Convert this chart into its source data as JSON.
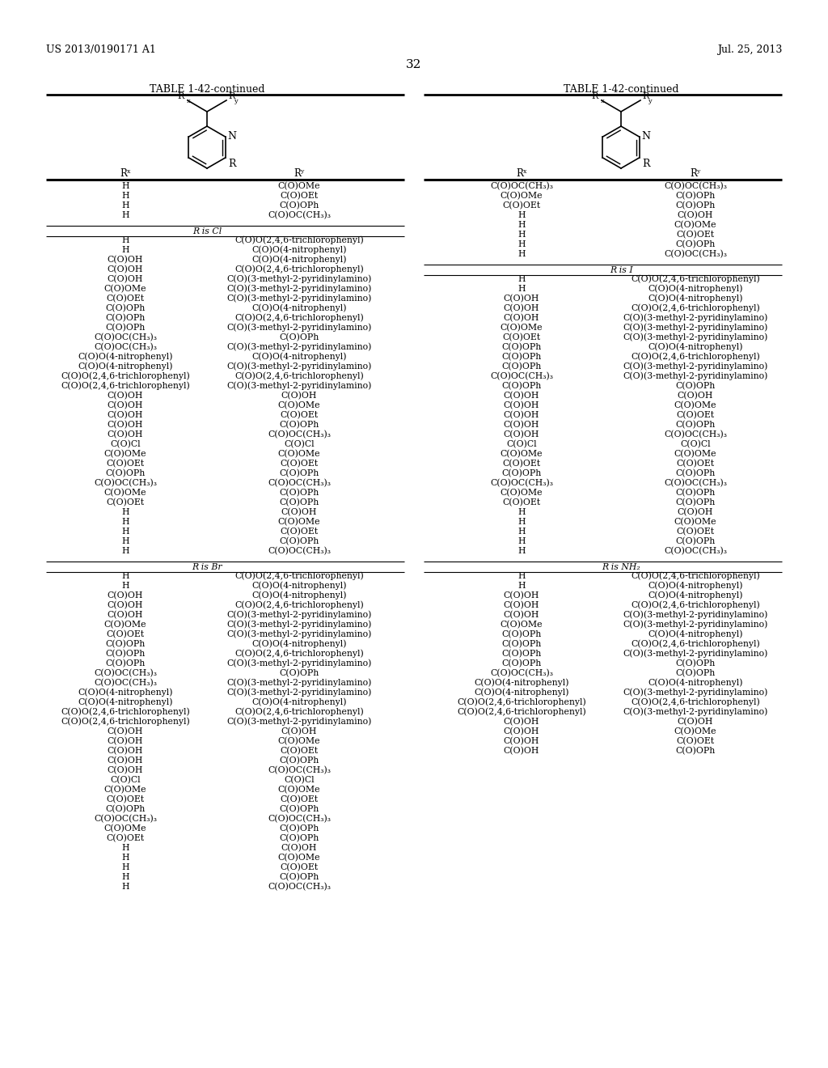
{
  "background_color": "#ffffff",
  "page_header_left": "US 2013/0190171 A1",
  "page_header_right": "Jul. 25, 2013",
  "page_number": "32",
  "table_title": "TABLE 1-42-continued",
  "left_table": {
    "r_is_none_rows": [
      [
        "H",
        "C(O)OMe"
      ],
      [
        "H",
        "C(O)OEt"
      ],
      [
        "H",
        "C(O)OPh"
      ],
      [
        "H",
        "C(O)OC(CH₃)₃"
      ]
    ],
    "r_is_cl_rows": [
      [
        "H",
        "C(O)O(2,4,6-trichlorophenyl)"
      ],
      [
        "H",
        "C(O)O(4-nitrophenyl)"
      ],
      [
        "C(O)OH",
        "C(O)O(4-nitrophenyl)"
      ],
      [
        "C(O)OH",
        "C(O)O(2,4,6-trichlorophenyl)"
      ],
      [
        "C(O)OH",
        "C(O)(3-methyl-2-pyridinylamino)"
      ],
      [
        "C(O)OMe",
        "C(O)(3-methyl-2-pyridinylamino)"
      ],
      [
        "C(O)OEt",
        "C(O)(3-methyl-2-pyridinylamino)"
      ],
      [
        "C(O)OPh",
        "C(O)O(4-nitrophenyl)"
      ],
      [
        "C(O)OPh",
        "C(O)O(2,4,6-trichlorophenyl)"
      ],
      [
        "C(O)OPh",
        "C(O)(3-methyl-2-pyridinylamino)"
      ],
      [
        "C(O)OC(CH₃)₃",
        "C(O)OPh"
      ],
      [
        "C(O)OC(CH₃)₃",
        "C(O)(3-methyl-2-pyridinylamino)"
      ],
      [
        "C(O)O(4-nitrophenyl)",
        "C(O)O(4-nitrophenyl)"
      ],
      [
        "C(O)O(4-nitrophenyl)",
        "C(O)(3-methyl-2-pyridinylamino)"
      ],
      [
        "C(O)O(2,4,6-trichlorophenyl)",
        "C(O)O(2,4,6-trichlorophenyl)"
      ],
      [
        "C(O)O(2,4,6-trichlorophenyl)",
        "C(O)(3-methyl-2-pyridinylamino)"
      ],
      [
        "C(O)OH",
        "C(O)OH"
      ],
      [
        "C(O)OH",
        "C(O)OMe"
      ],
      [
        "C(O)OH",
        "C(O)OEt"
      ],
      [
        "C(O)OH",
        "C(O)OPh"
      ],
      [
        "C(O)OH",
        "C(O)OC(CH₃)₃"
      ],
      [
        "C(O)Cl",
        "C(O)Cl"
      ],
      [
        "C(O)OMe",
        "C(O)OMe"
      ],
      [
        "C(O)OEt",
        "C(O)OEt"
      ],
      [
        "C(O)OPh",
        "C(O)OPh"
      ],
      [
        "C(O)OC(CH₃)₃",
        "C(O)OC(CH₃)₃"
      ],
      [
        "C(O)OMe",
        "C(O)OPh"
      ],
      [
        "C(O)OEt",
        "C(O)OPh"
      ],
      [
        "H",
        "C(O)OH"
      ],
      [
        "H",
        "C(O)OMe"
      ],
      [
        "H",
        "C(O)OEt"
      ],
      [
        "H",
        "C(O)OPh"
      ],
      [
        "H",
        "C(O)OC(CH₃)₃"
      ]
    ],
    "r_is_br_rows": [
      [
        "H",
        "C(O)O(2,4,6-trichlorophenyl)"
      ],
      [
        "H",
        "C(O)O(4-nitrophenyl)"
      ],
      [
        "C(O)OH",
        "C(O)O(4-nitrophenyl)"
      ],
      [
        "C(O)OH",
        "C(O)O(2,4,6-trichlorophenyl)"
      ],
      [
        "C(O)OH",
        "C(O)(3-methyl-2-pyridinylamino)"
      ],
      [
        "C(O)OMe",
        "C(O)(3-methyl-2-pyridinylamino)"
      ],
      [
        "C(O)OEt",
        "C(O)(3-methyl-2-pyridinylamino)"
      ],
      [
        "C(O)OPh",
        "C(O)O(4-nitrophenyl)"
      ],
      [
        "C(O)OPh",
        "C(O)O(2,4,6-trichlorophenyl)"
      ],
      [
        "C(O)OPh",
        "C(O)(3-methyl-2-pyridinylamino)"
      ],
      [
        "C(O)OC(CH₃)₃",
        "C(O)OPh"
      ],
      [
        "C(O)OC(CH₃)₃",
        "C(O)(3-methyl-2-pyridinylamino)"
      ],
      [
        "C(O)O(4-nitrophenyl)",
        "C(O)(3-methyl-2-pyridinylamino)"
      ],
      [
        "C(O)O(4-nitrophenyl)",
        "C(O)O(4-nitrophenyl)"
      ],
      [
        "C(O)O(2,4,6-trichlorophenyl)",
        "C(O)O(2,4,6-trichlorophenyl)"
      ],
      [
        "C(O)O(2,4,6-trichlorophenyl)",
        "C(O)(3-methyl-2-pyridinylamino)"
      ],
      [
        "C(O)OH",
        "C(O)OH"
      ],
      [
        "C(O)OH",
        "C(O)OMe"
      ],
      [
        "C(O)OH",
        "C(O)OEt"
      ],
      [
        "C(O)OH",
        "C(O)OPh"
      ],
      [
        "C(O)OH",
        "C(O)OC(CH₃)₃"
      ],
      [
        "C(O)Cl",
        "C(O)Cl"
      ],
      [
        "C(O)OMe",
        "C(O)OMe"
      ],
      [
        "C(O)OEt",
        "C(O)OEt"
      ],
      [
        "C(O)OPh",
        "C(O)OPh"
      ],
      [
        "C(O)OC(CH₃)₃",
        "C(O)OC(CH₃)₃"
      ],
      [
        "C(O)OMe",
        "C(O)OPh"
      ],
      [
        "C(O)OEt",
        "C(O)OPh"
      ],
      [
        "H",
        "C(O)OH"
      ],
      [
        "H",
        "C(O)OMe"
      ],
      [
        "H",
        "C(O)OEt"
      ],
      [
        "H",
        "C(O)OPh"
      ],
      [
        "H",
        "C(O)OC(CH₃)₃"
      ]
    ]
  },
  "right_table": {
    "r_is_none_rows": [
      [
        "C(O)OC(CH₃)₃",
        "C(O)OC(CH₃)₃"
      ],
      [
        "C(O)OMe",
        "C(O)OPh"
      ],
      [
        "C(O)OEt",
        "C(O)OPh"
      ],
      [
        "H",
        "C(O)OH"
      ],
      [
        "H",
        "C(O)OMe"
      ],
      [
        "H",
        "C(O)OEt"
      ],
      [
        "H",
        "C(O)OPh"
      ],
      [
        "H",
        "C(O)OC(CH₃)₃"
      ]
    ],
    "r_is_i_rows": [
      [
        "H",
        "C(O)O(2,4,6-trichlorophenyl)"
      ],
      [
        "H",
        "C(O)O(4-nitrophenyl)"
      ],
      [
        "C(O)OH",
        "C(O)O(4-nitrophenyl)"
      ],
      [
        "C(O)OH",
        "C(O)O(2,4,6-trichlorophenyl)"
      ],
      [
        "C(O)OH",
        "C(O)(3-methyl-2-pyridinylamino)"
      ],
      [
        "C(O)OMe",
        "C(O)(3-methyl-2-pyridinylamino)"
      ],
      [
        "C(O)OEt",
        "C(O)(3-methyl-2-pyridinylamino)"
      ],
      [
        "C(O)OPh",
        "C(O)O(4-nitrophenyl)"
      ],
      [
        "C(O)OPh",
        "C(O)O(2,4,6-trichlorophenyl)"
      ],
      [
        "C(O)OPh",
        "C(O)(3-methyl-2-pyridinylamino)"
      ],
      [
        "C(O)OC(CH₃)₃",
        "C(O)(3-methyl-2-pyridinylamino)"
      ],
      [
        "C(O)OPh",
        "C(O)OPh"
      ],
      [
        "C(O)OH",
        "C(O)OH"
      ],
      [
        "C(O)OH",
        "C(O)OMe"
      ],
      [
        "C(O)OH",
        "C(O)OEt"
      ],
      [
        "C(O)OH",
        "C(O)OPh"
      ],
      [
        "C(O)OH",
        "C(O)OC(CH₃)₃"
      ],
      [
        "C(O)Cl",
        "C(O)Cl"
      ],
      [
        "C(O)OMe",
        "C(O)OMe"
      ],
      [
        "C(O)OEt",
        "C(O)OEt"
      ],
      [
        "C(O)OPh",
        "C(O)OPh"
      ],
      [
        "C(O)OC(CH₃)₃",
        "C(O)OC(CH₃)₃"
      ],
      [
        "C(O)OMe",
        "C(O)OPh"
      ],
      [
        "C(O)OEt",
        "C(O)OPh"
      ],
      [
        "H",
        "C(O)OH"
      ],
      [
        "H",
        "C(O)OMe"
      ],
      [
        "H",
        "C(O)OEt"
      ],
      [
        "H",
        "C(O)OPh"
      ],
      [
        "H",
        "C(O)OC(CH₃)₃"
      ]
    ],
    "r_is_nh2_rows": [
      [
        "H",
        "C(O)O(2,4,6-trichlorophenyl)"
      ],
      [
        "H",
        "C(O)O(4-nitrophenyl)"
      ],
      [
        "C(O)OH",
        "C(O)O(4-nitrophenyl)"
      ],
      [
        "C(O)OH",
        "C(O)O(2,4,6-trichlorophenyl)"
      ],
      [
        "C(O)OH",
        "C(O)(3-methyl-2-pyridinylamino)"
      ],
      [
        "C(O)OMe",
        "C(O)(3-methyl-2-pyridinylamino)"
      ],
      [
        "C(O)OPh",
        "C(O)O(4-nitrophenyl)"
      ],
      [
        "C(O)OPh",
        "C(O)O(2,4,6-trichlorophenyl)"
      ],
      [
        "C(O)OPh",
        "C(O)(3-methyl-2-pyridinylamino)"
      ],
      [
        "C(O)OPh",
        "C(O)OPh"
      ],
      [
        "C(O)OC(CH₃)₃",
        "C(O)OPh"
      ],
      [
        "C(O)O(4-nitrophenyl)",
        "C(O)O(4-nitrophenyl)"
      ],
      [
        "C(O)O(4-nitrophenyl)",
        "C(O)(3-methyl-2-pyridinylamino)"
      ],
      [
        "C(O)O(2,4,6-trichlorophenyl)",
        "C(O)O(2,4,6-trichlorophenyl)"
      ],
      [
        "C(O)O(2,4,6-trichlorophenyl)",
        "C(O)(3-methyl-2-pyridinylamino)"
      ],
      [
        "C(O)OH",
        "C(O)OH"
      ],
      [
        "C(O)OH",
        "C(O)OMe"
      ],
      [
        "C(O)OH",
        "C(O)OEt"
      ],
      [
        "C(O)OH",
        "C(O)OPh"
      ]
    ]
  }
}
